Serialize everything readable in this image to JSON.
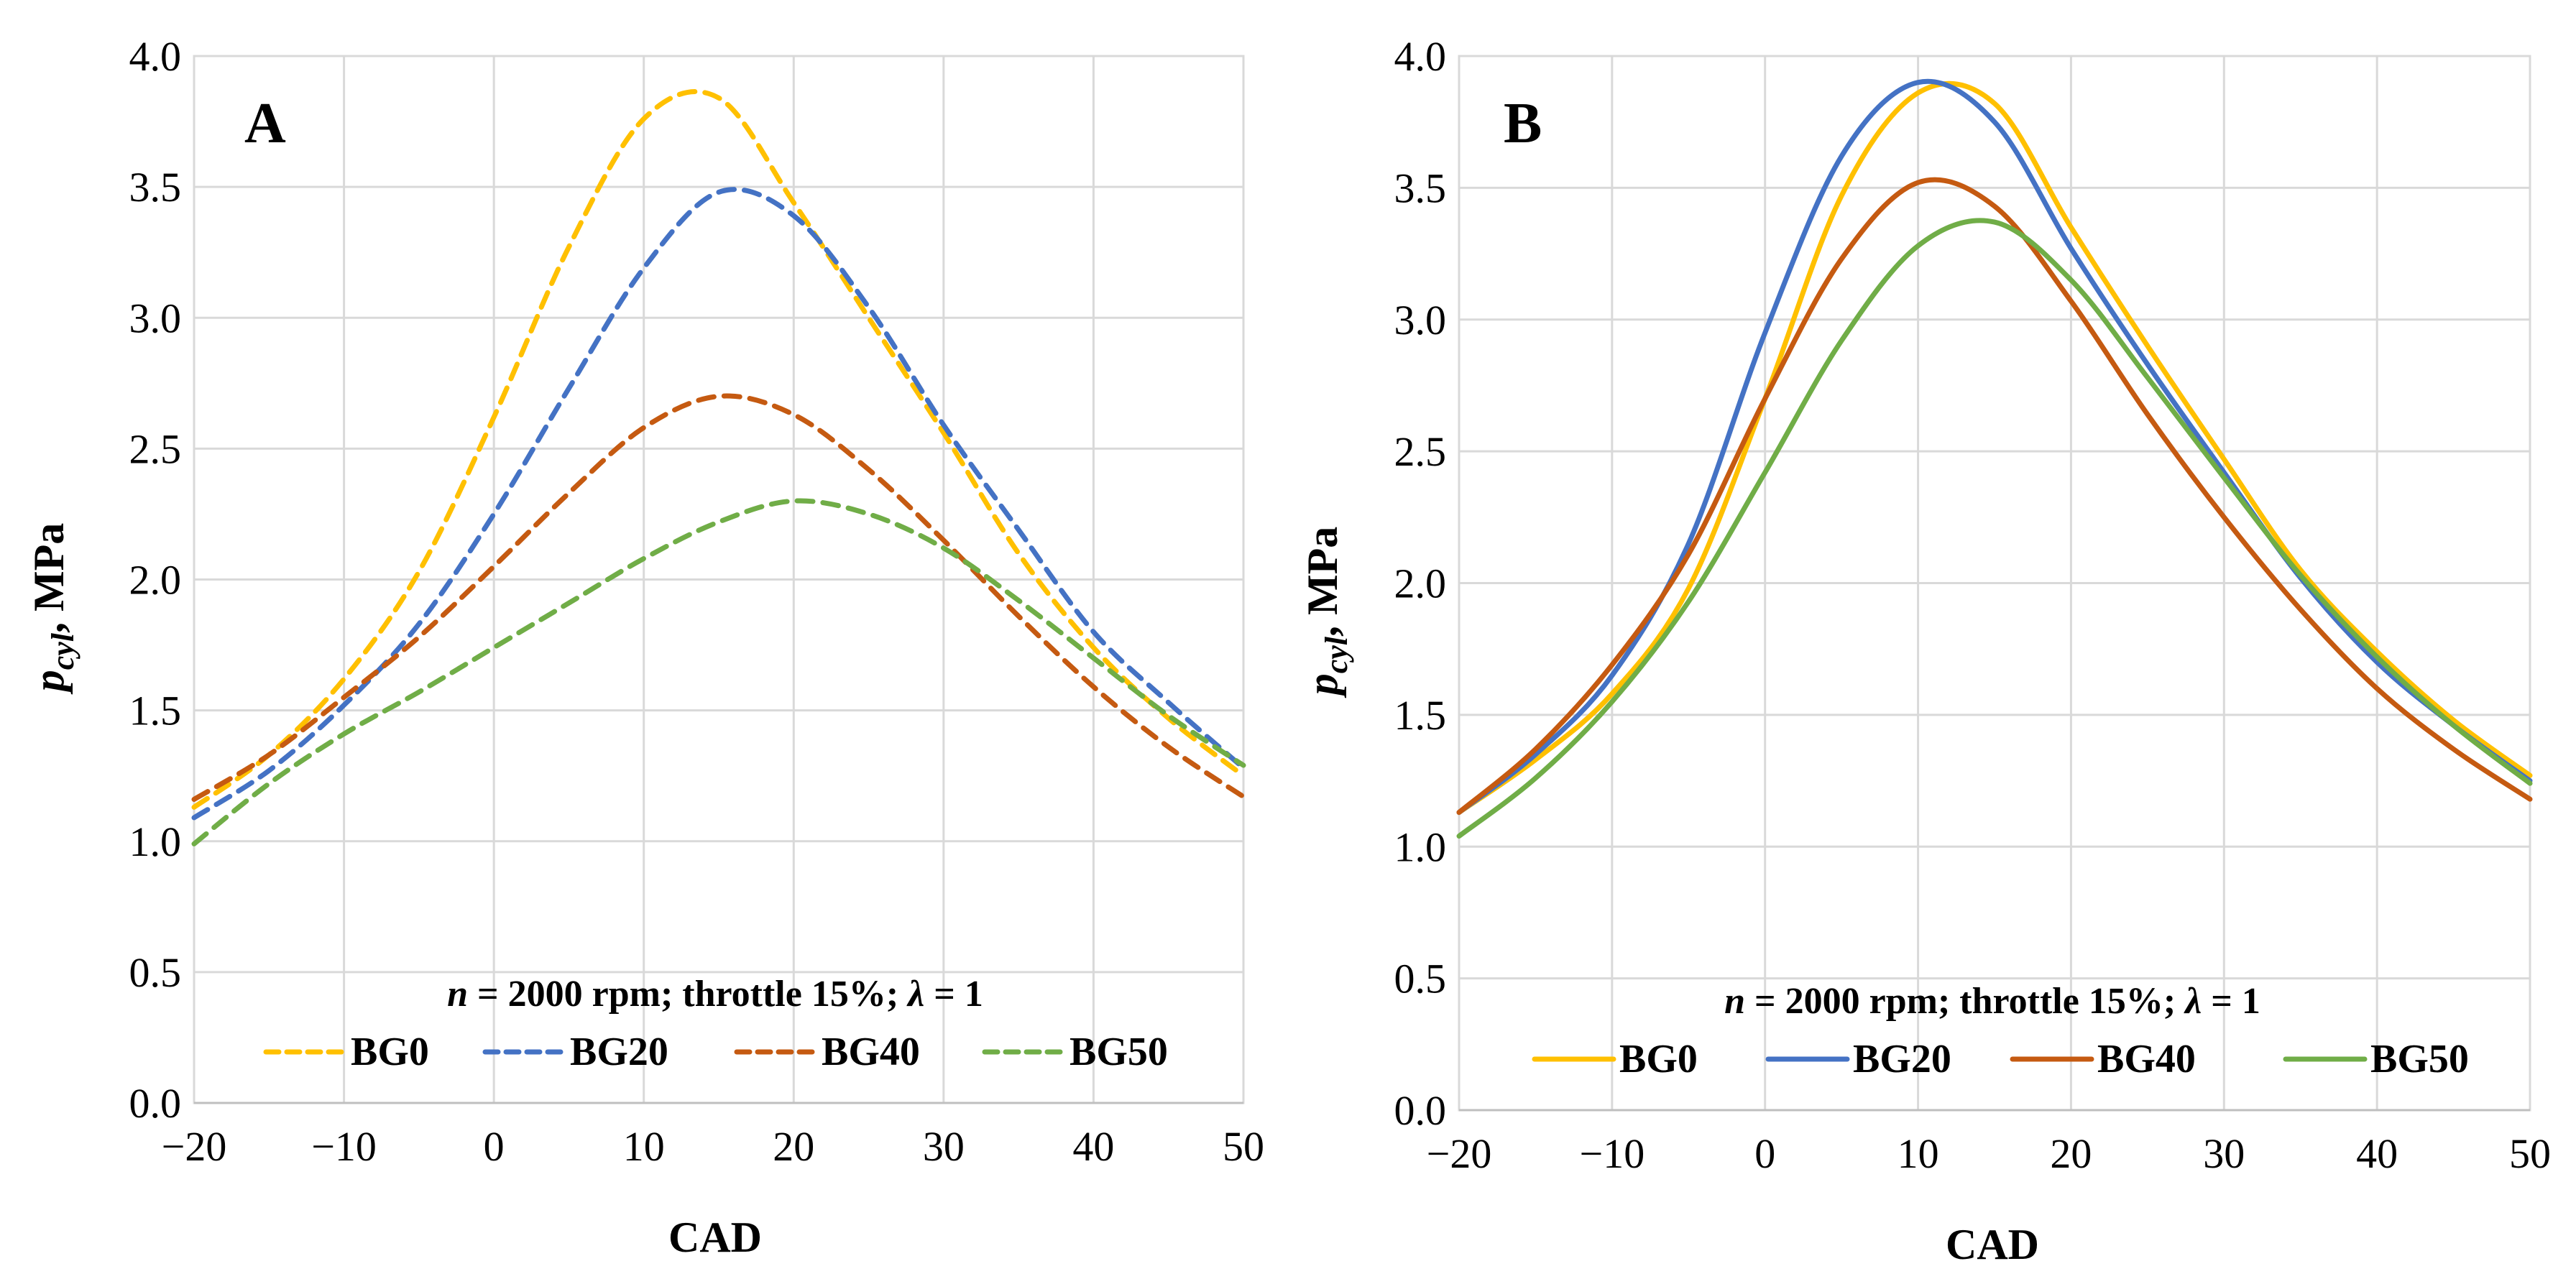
{
  "colors": {
    "BG0": "#FFC000",
    "BG20": "#4472C4",
    "BG40": "#C55A11",
    "BG50": "#70AD47"
  },
  "chart_data": [
    {
      "type": "line",
      "panel_label": "A",
      "line_style": "dashed",
      "xlabel": "CAD",
      "ylabel_main": "p",
      "ylabel_sub": "cyl",
      "ylabel_unit": ", MPa",
      "xlim": [
        -20,
        50
      ],
      "ylim": [
        0,
        4
      ],
      "x_ticks": [
        -20,
        -10,
        0,
        10,
        20,
        30,
        40,
        50
      ],
      "x_tick_labels": [
        "−20",
        "−10",
        "0",
        "10",
        "20",
        "30",
        "40",
        "50"
      ],
      "y_ticks": [
        0,
        0.5,
        1,
        1.5,
        2,
        2.5,
        3,
        3.5,
        4
      ],
      "y_tick_labels": [
        "0.0",
        "0.5",
        "1.0",
        "1.5",
        "2.0",
        "2.5",
        "3.0",
        "3.5",
        "4.0"
      ],
      "note": {
        "n": "n",
        "n_rest": " = 2000 rpm; throttle 15%; ",
        "lambda": "λ",
        "lambda_rest": " = 1"
      },
      "x": [
        -20,
        -15,
        -10,
        -5,
        0,
        5,
        10,
        15,
        20,
        25,
        30,
        35,
        40,
        45,
        50
      ],
      "series": [
        {
          "name": "BG0",
          "values": [
            1.13,
            1.33,
            1.62,
            2.03,
            2.62,
            3.27,
            3.76,
            3.84,
            3.44,
            3.0,
            2.56,
            2.1,
            1.74,
            1.47,
            1.25
          ]
        },
        {
          "name": "BG20",
          "values": [
            1.09,
            1.27,
            1.52,
            1.83,
            2.25,
            2.73,
            3.19,
            3.48,
            3.39,
            3.04,
            2.59,
            2.19,
            1.8,
            1.53,
            1.28
          ]
        },
        {
          "name": "BG40",
          "values": [
            1.16,
            1.33,
            1.55,
            1.78,
            2.05,
            2.33,
            2.58,
            2.7,
            2.63,
            2.42,
            2.15,
            1.86,
            1.59,
            1.36,
            1.17
          ]
        },
        {
          "name": "BG50",
          "values": [
            0.99,
            1.22,
            1.41,
            1.57,
            1.74,
            1.91,
            2.08,
            2.22,
            2.3,
            2.25,
            2.12,
            1.92,
            1.7,
            1.48,
            1.29
          ]
        }
      ]
    },
    {
      "type": "line",
      "panel_label": "B",
      "line_style": "solid",
      "xlabel": "CAD",
      "ylabel_main": "p",
      "ylabel_sub": "cyl",
      "ylabel_unit": ", MPa",
      "xlim": [
        -20,
        50
      ],
      "ylim": [
        0,
        4
      ],
      "x_ticks": [
        -20,
        -10,
        0,
        10,
        20,
        30,
        40,
        50
      ],
      "x_tick_labels": [
        "−20",
        "−10",
        "0",
        "10",
        "20",
        "30",
        "40",
        "50"
      ],
      "y_ticks": [
        0,
        0.5,
        1,
        1.5,
        2,
        2.5,
        3,
        3.5,
        4
      ],
      "y_tick_labels": [
        "0.0",
        "0.5",
        "1.0",
        "1.5",
        "2.0",
        "2.5",
        "3.0",
        "3.5",
        "4.0"
      ],
      "note": {
        "n": "n",
        "n_rest": " = 2000 rpm; throttle 15%; ",
        "lambda": "λ",
        "lambda_rest": " = 1"
      },
      "x": [
        -20,
        -15,
        -10,
        -5,
        0,
        5,
        10,
        15,
        20,
        25,
        30,
        35,
        40,
        45,
        50
      ],
      "series": [
        {
          "name": "BG0",
          "values": [
            1.13,
            1.33,
            1.58,
            1.98,
            2.7,
            3.47,
            3.86,
            3.82,
            3.35,
            2.9,
            2.47,
            2.05,
            1.74,
            1.48,
            1.27
          ]
        },
        {
          "name": "BG20",
          "values": [
            1.13,
            1.35,
            1.65,
            2.15,
            2.95,
            3.62,
            3.9,
            3.75,
            3.27,
            2.83,
            2.42,
            2.02,
            1.7,
            1.46,
            1.25
          ]
        },
        {
          "name": "BG40",
          "values": [
            1.13,
            1.37,
            1.69,
            2.11,
            2.7,
            3.23,
            3.52,
            3.43,
            3.07,
            2.64,
            2.25,
            1.9,
            1.6,
            1.37,
            1.18
          ]
        },
        {
          "name": "BG50",
          "values": [
            1.04,
            1.26,
            1.55,
            1.93,
            2.42,
            2.92,
            3.28,
            3.37,
            3.15,
            2.78,
            2.4,
            2.03,
            1.72,
            1.46,
            1.24
          ]
        }
      ]
    }
  ]
}
